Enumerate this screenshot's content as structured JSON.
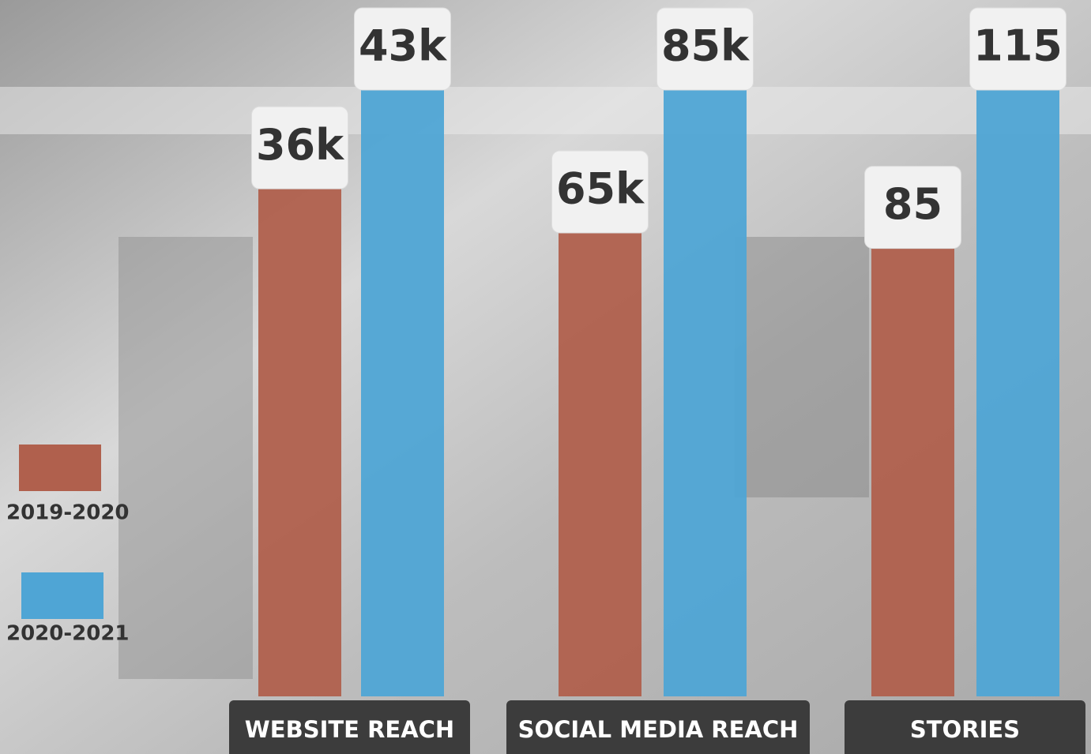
{
  "chart_data": {
    "type": "bar",
    "categories": [
      "WEBSITE REACH",
      "SOCIAL MEDIA REACH",
      "STORIES"
    ],
    "series": [
      {
        "name": "2019-2020",
        "color": "#b0604d",
        "values": [
          36000,
          65000,
          85
        ],
        "value_labels": [
          "36k",
          "65k",
          "85"
        ]
      },
      {
        "name": "2020-2021",
        "color": "#4fa5d5",
        "values": [
          43000,
          85000,
          115
        ],
        "value_labels": [
          "43k",
          "85k",
          "115"
        ]
      }
    ]
  }
}
